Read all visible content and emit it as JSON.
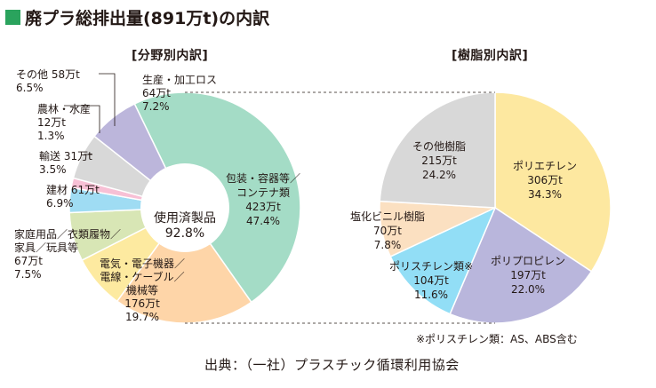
{
  "title": "廃プラ総排出量(891万t)の内訳",
  "note": "※ポリスチレン類：AS、ABS含む",
  "source": "出典：（一社）プラスチック循環利用協会",
  "colors": {
    "title_square": "#2aa35d",
    "packaging": "#a4dcc6",
    "electrical": "#fed5a8",
    "household": "#fdeaa0",
    "construction": "#d8e6b5",
    "transport": "#9fdcf3",
    "agriculture": "#f7c0d5",
    "other": "#d8d8d8",
    "production": "#bcb6db",
    "polyethylene": "#fde8a0",
    "polypropylene": "#b9b6dc",
    "polystyrene": "#92def6",
    "pvc": "#fbe0c1",
    "other_resin": "#d8d8d8"
  },
  "chart_data": [
    {
      "type": "pie",
      "subtitle": "[分野別内訳]",
      "center_label": [
        "使用済製品",
        "92.8%"
      ],
      "slices": [
        {
          "name": "包装・容器等／コンテナ類",
          "label_lines": [
            "包装・容器等／",
            "コンテナ類",
            "423万t",
            "47.4%"
          ],
          "value": 423,
          "percent": 47.4,
          "color": "#a4dcc6"
        },
        {
          "name": "電気・電子機器／電線・ケーブル／機械等",
          "label_lines": [
            "電気・電子機器／",
            "電線・ケーブル／",
            "機械等",
            "176万t",
            "19.7%"
          ],
          "value": 176,
          "percent": 19.7,
          "color": "#fed5a8"
        },
        {
          "name": "家庭用品／衣類履物／家具／玩具等",
          "label_lines": [
            "家庭用品／衣類履物／",
            "家具／玩具等",
            "67万t",
            "7.5%"
          ],
          "value": 67,
          "percent": 7.5,
          "color": "#fdeaa0"
        },
        {
          "name": "建材",
          "label_lines": [
            "建材 61万t",
            "6.9%"
          ],
          "value": 61,
          "percent": 6.9,
          "color": "#d8e6b5"
        },
        {
          "name": "輸送",
          "label_lines": [
            "輸送 31万t",
            "3.5%"
          ],
          "value": 31,
          "percent": 3.5,
          "color": "#9fdcf3"
        },
        {
          "name": "農林・水産",
          "label_lines": [
            "農林・水産",
            "12万t",
            "1.3%"
          ],
          "value": 12,
          "percent": 1.3,
          "color": "#f7c0d5"
        },
        {
          "name": "その他",
          "label_lines": [
            "その他 58万t",
            "6.5%"
          ],
          "value": 58,
          "percent": 6.5,
          "color": "#d8d8d8"
        },
        {
          "name": "生産・加工ロス",
          "label_lines": [
            "生産・加工ロス",
            "64万t",
            "7.2%"
          ],
          "value": 64,
          "percent": 7.2,
          "color": "#bcb6db"
        }
      ]
    },
    {
      "type": "pie",
      "subtitle": "[樹脂別内訳]",
      "slices": [
        {
          "name": "ポリエチレン",
          "label_lines": [
            "ポリエチレン",
            "306万t",
            "34.3%"
          ],
          "value": 306,
          "percent": 34.3,
          "color": "#fde8a0"
        },
        {
          "name": "ポリプロピレン",
          "label_lines": [
            "ポリプロピレン",
            "197万t",
            "22.0%"
          ],
          "value": 197,
          "percent": 22.0,
          "color": "#b9b6dc"
        },
        {
          "name": "ポリスチレン類※",
          "label_lines": [
            "ポリスチレン類※",
            "104万t",
            "11.6%"
          ],
          "value": 104,
          "percent": 11.6,
          "color": "#92def6"
        },
        {
          "name": "塩化ビニル樹脂",
          "label_lines": [
            "塩化ビニル樹脂",
            "70万t",
            "7.8%"
          ],
          "value": 70,
          "percent": 7.8,
          "color": "#fbe0c1"
        },
        {
          "name": "その他樹脂",
          "label_lines": [
            "その他樹脂",
            "215万t",
            "24.2%"
          ],
          "value": 215,
          "percent": 24.2,
          "color": "#d8d8d8"
        }
      ]
    }
  ]
}
